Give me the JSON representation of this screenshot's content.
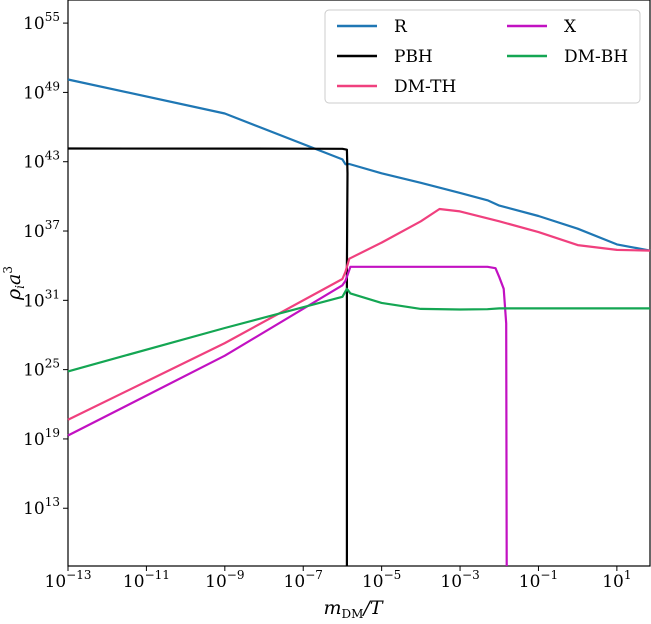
{
  "chart_data": {
    "type": "line",
    "title": "",
    "xlabel": "m_DM/T",
    "ylabel": "ρ_i a^3",
    "x_scale": "log",
    "y_scale": "log",
    "xlim": [
      1e-13,
      70
    ],
    "ylim": [
      100000000.0,
      1e+57
    ],
    "x_ticks": [
      -13,
      -11,
      -9,
      -7,
      -5,
      -3,
      -1,
      1
    ],
    "y_ticks": [
      13,
      19,
      25,
      31,
      37,
      43,
      49,
      55
    ],
    "grid": false,
    "legend": {
      "placement": "top-right",
      "columns": 2
    },
    "series": [
      {
        "name": "R",
        "color": "#1f77b4",
        "points": [
          [
            1e-13,
            1.3e+50
          ],
          [
            1e-09,
            1.5e+47
          ],
          [
            1e-06,
            1.6e+43
          ],
          [
            1.2e-06,
            6e+42
          ],
          [
            1.5e-06,
            6.3e+42
          ],
          [
            1e-05,
            1e+42
          ],
          [
            0.0001,
            1.5e+41
          ],
          [
            0.001,
            2e+40
          ],
          [
            0.005,
            4.6e+39
          ],
          [
            0.01,
            1.6e+39
          ],
          [
            0.1,
            2e+38
          ],
          [
            1,
            1.6e+37
          ],
          [
            10,
            7e+35
          ],
          [
            70,
            2e+35
          ]
        ]
      },
      {
        "name": "PBH",
        "color": "#000000",
        "points": [
          [
            1e-13,
            1.4e+44
          ],
          [
            1e-07,
            1.35e+44
          ],
          [
            1e-06,
            1.3e+44
          ],
          [
            1.3e-06,
            1.1e+44
          ],
          [
            1.35e-06,
            1e+42
          ],
          [
            1.3e-06,
            1e+34
          ],
          [
            1.3e-06,
            100000000.0
          ]
        ]
      },
      {
        "name": "DM-TH",
        "color": "#f0407e",
        "points": [
          [
            1e-13,
            4.5e+20
          ],
          [
            1e-09,
            2e+27
          ],
          [
            1e-06,
            7e+32
          ],
          [
            1.2e-06,
            3e+33
          ],
          [
            1.5e-06,
            4e+34
          ],
          [
            1e-05,
            1e+36
          ],
          [
            0.0001,
            7e+37
          ],
          [
            0.0003,
            8e+38
          ],
          [
            0.001,
            5e+38
          ],
          [
            0.01,
            7e+37
          ],
          [
            0.1,
            8e+36
          ],
          [
            1,
            6e+35
          ],
          [
            10,
            2.3e+35
          ],
          [
            70,
            2e+35
          ]
        ]
      },
      {
        "name": "X",
        "color": "#c211c2",
        "points": [
          [
            1e-13,
            2e+19
          ],
          [
            1e-09,
            1.6e+26
          ],
          [
            1e-06,
            2e+32
          ],
          [
            1.2e-06,
            5e+32
          ],
          [
            1.6e-06,
            8e+33
          ],
          [
            0.0001,
            8e+33
          ],
          [
            0.005,
            8e+33
          ],
          [
            0.008,
            6e+33
          ],
          [
            0.01,
            1e+33
          ],
          [
            0.013,
            1e+32
          ],
          [
            0.015,
            1e+29
          ],
          [
            0.0155,
            100000000.0
          ]
        ]
      },
      {
        "name": "DM-BH",
        "color": "#14a653",
        "points": [
          [
            1e-13,
            7e+24
          ],
          [
            1e-09,
            4e+28
          ],
          [
            1e-06,
            2e+31
          ],
          [
            1.3e-06,
            1e+32
          ],
          [
            1.6e-06,
            4e+31
          ],
          [
            1e-05,
            6e+30
          ],
          [
            0.0001,
            1.8e+30
          ],
          [
            0.001,
            1.6e+30
          ],
          [
            0.005,
            1.7e+30
          ],
          [
            0.01,
            2e+30
          ],
          [
            1,
            2e+30
          ],
          [
            70,
            2e+30
          ]
        ]
      }
    ]
  }
}
